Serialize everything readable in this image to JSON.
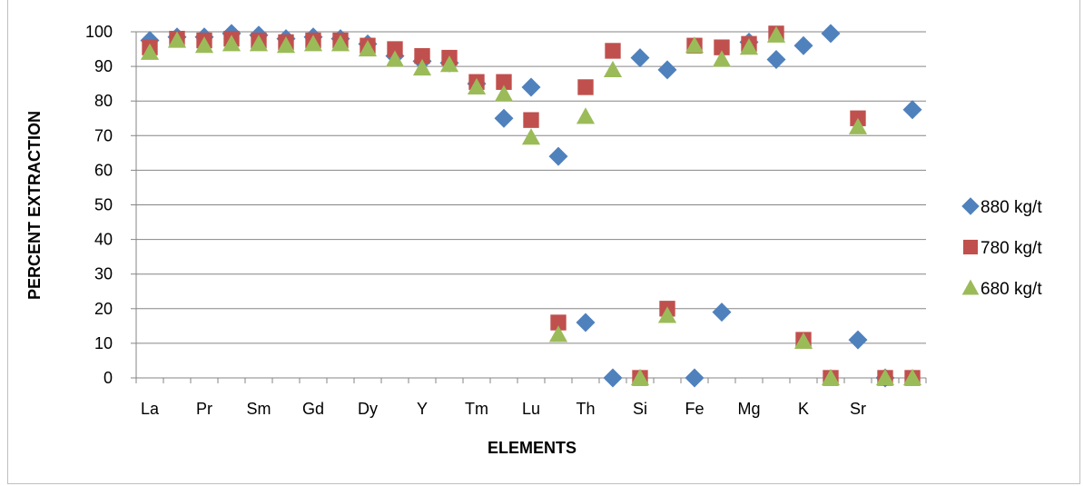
{
  "chart_data": {
    "type": "scatter",
    "title": "",
    "xlabel": "ELEMENTS",
    "ylabel": "PERCENT EXTRACTION",
    "ylim": [
      0,
      100
    ],
    "yticks": [
      0,
      10,
      20,
      30,
      40,
      50,
      60,
      70,
      80,
      90,
      100
    ],
    "x_tick_labels": [
      "La",
      "Pr",
      "Sm",
      "Gd",
      "Dy",
      "Y",
      "Tm",
      "Lu",
      "Th",
      "Si",
      "Fe",
      "Mg",
      "K",
      "Sr"
    ],
    "grid": "horizontal",
    "legend_position": "right",
    "series": [
      {
        "name": "880 kg/t",
        "marker": "diamond",
        "color": "#4f81bd",
        "values": [
          97.5,
          98.5,
          98.5,
          99.5,
          99,
          98,
          98.5,
          98,
          96.5,
          93,
          91.5,
          91,
          85,
          75,
          84,
          64,
          16,
          0,
          92.5,
          89,
          0,
          19,
          97,
          92,
          96,
          99.5,
          11,
          0,
          77.5
        ]
      },
      {
        "name": "780 kg/t",
        "marker": "square",
        "color": "#c0504d",
        "values": [
          95.5,
          98,
          97.5,
          98,
          97.5,
          97,
          97.5,
          97.5,
          96,
          95,
          93,
          92.5,
          85.5,
          85.5,
          74.5,
          16,
          84,
          94.5,
          0,
          20,
          96,
          95.5,
          96.5,
          99.5,
          11,
          0,
          75,
          0,
          0
        ]
      },
      {
        "name": "680 kg/t",
        "marker": "triangle",
        "color": "#9bbb59",
        "values": [
          94,
          97.5,
          96,
          96.5,
          96.5,
          96,
          96.5,
          96.5,
          95,
          92,
          89.5,
          90.5,
          84,
          82,
          69.5,
          12.5,
          75.5,
          89,
          0,
          18,
          96,
          92,
          95.5,
          99,
          10.5,
          0,
          72.5,
          0,
          0
        ]
      }
    ]
  }
}
